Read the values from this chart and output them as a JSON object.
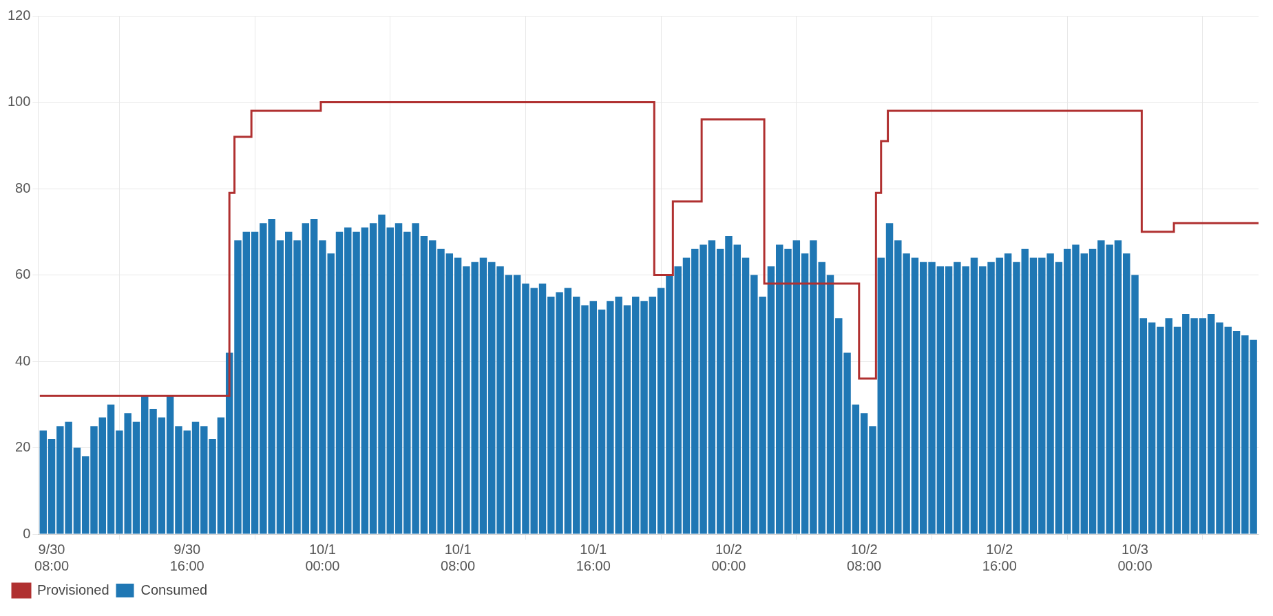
{
  "chart_data": {
    "type": "bar",
    "xlim": [
      "--09-30T07:12",
      "--10-03T07:18"
    ],
    "ylim": [
      0,
      120
    ],
    "yticks": [
      0,
      20,
      40,
      60,
      80,
      100,
      120
    ],
    "xticks": [
      {
        "value": "--09-30T08:00",
        "label": "9/30\n08:00"
      },
      {
        "value": "--09-30T16:00",
        "label": "9/30\n16:00"
      },
      {
        "value": "--10-01T00:00",
        "label": "10/1\n00:00"
      },
      {
        "value": "--10-01T08:00",
        "label": "10/1\n08:00"
      },
      {
        "value": "--10-01T16:00",
        "label": "10/1\n16:00"
      },
      {
        "value": "--10-02T00:00",
        "label": "10/2\n00:00"
      },
      {
        "value": "--10-02T08:00",
        "label": "10/2\n08:00"
      },
      {
        "value": "--10-02T16:00",
        "label": "10/2\n16:00"
      },
      {
        "value": "--10-03T00:00",
        "label": "10/3\n00:00"
      }
    ],
    "grid": true,
    "legend": "bottom left",
    "series": [
      {
        "name": "Provisioned",
        "type": "step",
        "color": "#b03030",
        "x": [
          "--09-30T07:18",
          "--09-30T18:30",
          "--09-30T18:48",
          "--09-30T19:48",
          "--09-30T23:54",
          "--10-01T19:36",
          "--10-01T20:42",
          "--10-01T22:24",
          "--10-02T02:06",
          "--10-02T07:42",
          "--10-02T08:42",
          "--10-02T09:00",
          "--10-02T09:24",
          "--10-03T00:24",
          "--10-03T02:18",
          "--10-03T07:18"
        ],
        "values": [
          32,
          79,
          92,
          98,
          100,
          60,
          77,
          96,
          58,
          36,
          79,
          91,
          98,
          70,
          72,
          72
        ]
      },
      {
        "name": "Consumed",
        "color": "#1f77b4",
        "x": [
          "--09-30T07:30",
          "--09-30T08:00",
          "--09-30T08:30",
          "--09-30T09:00",
          "--09-30T09:30",
          "--09-30T10:00",
          "--09-30T10:30",
          "--09-30T11:00",
          "--09-30T11:30",
          "--09-30T12:00",
          "--09-30T12:30",
          "--09-30T13:00",
          "--09-30T13:30",
          "--09-30T14:00",
          "--09-30T14:30",
          "--09-30T15:00",
          "--09-30T15:30",
          "--09-30T16:00",
          "--09-30T16:30",
          "--09-30T17:00",
          "--09-30T17:30",
          "--09-30T18:00",
          "--09-30T18:30",
          "--09-30T19:00",
          "--09-30T19:30",
          "--09-30T20:00",
          "--09-30T20:30",
          "--09-30T21:00",
          "--09-30T21:30",
          "--09-30T22:00",
          "--09-30T22:30",
          "--09-30T23:00",
          "--09-30T23:30",
          "--10-01T00:00",
          "--10-01T00:30",
          "--10-01T01:00",
          "--10-01T01:30",
          "--10-01T02:00",
          "--10-01T02:30",
          "--10-01T03:00",
          "--10-01T03:30",
          "--10-01T04:00",
          "--10-01T04:30",
          "--10-01T05:00",
          "--10-01T05:30",
          "--10-01T06:00",
          "--10-01T06:30",
          "--10-01T07:00",
          "--10-01T07:30",
          "--10-01T08:00",
          "--10-01T08:30",
          "--10-01T09:00",
          "--10-01T09:30",
          "--10-01T10:00",
          "--10-01T10:30",
          "--10-01T11:00",
          "--10-01T11:30",
          "--10-01T12:00",
          "--10-01T12:30",
          "--10-01T13:00",
          "--10-01T13:30",
          "--10-01T14:00",
          "--10-01T14:30",
          "--10-01T15:00",
          "--10-01T15:30",
          "--10-01T16:00",
          "--10-01T16:30",
          "--10-01T17:00",
          "--10-01T17:30",
          "--10-01T18:00",
          "--10-01T18:30",
          "--10-01T19:00",
          "--10-01T19:30",
          "--10-01T20:00",
          "--10-01T20:30",
          "--10-01T21:00",
          "--10-01T21:30",
          "--10-01T22:00",
          "--10-01T22:30",
          "--10-01T23:00",
          "--10-01T23:30",
          "--10-02T00:00",
          "--10-02T00:30",
          "--10-02T01:00",
          "--10-02T01:30",
          "--10-02T02:00",
          "--10-02T02:30",
          "--10-02T03:00",
          "--10-02T03:30",
          "--10-02T04:00",
          "--10-02T04:30",
          "--10-02T05:00",
          "--10-02T05:30",
          "--10-02T06:00",
          "--10-02T06:30",
          "--10-02T07:00",
          "--10-02T07:30",
          "--10-02T08:00",
          "--10-02T08:30",
          "--10-02T09:00",
          "--10-02T09:30",
          "--10-02T10:00",
          "--10-02T10:30",
          "--10-02T11:00",
          "--10-02T11:30",
          "--10-02T12:00",
          "--10-02T12:30",
          "--10-02T13:00",
          "--10-02T13:30",
          "--10-02T14:00",
          "--10-02T14:30",
          "--10-02T15:00",
          "--10-02T15:30",
          "--10-02T16:00",
          "--10-02T16:30",
          "--10-02T17:00",
          "--10-02T17:30",
          "--10-02T18:00",
          "--10-02T18:30",
          "--10-02T19:00",
          "--10-02T19:30",
          "--10-02T20:00",
          "--10-02T20:30",
          "--10-02T21:00",
          "--10-02T21:30",
          "--10-02T22:00",
          "--10-02T22:30",
          "--10-02T23:00",
          "--10-02T23:30",
          "--10-03T00:00",
          "--10-03T00:30",
          "--10-03T01:00",
          "--10-03T01:30",
          "--10-03T02:00",
          "--10-03T02:30",
          "--10-03T03:00",
          "--10-03T03:30",
          "--10-03T04:00",
          "--10-03T04:30",
          "--10-03T05:00",
          "--10-03T05:30",
          "--10-03T06:00",
          "--10-03T06:30",
          "--10-03T07:00"
        ],
        "values": [
          24,
          22,
          25,
          26,
          20,
          18,
          25,
          27,
          30,
          24,
          28,
          26,
          32,
          29,
          27,
          32,
          25,
          24,
          26,
          25,
          22,
          27,
          42,
          68,
          70,
          70,
          72,
          73,
          68,
          70,
          68,
          72,
          73,
          68,
          65,
          70,
          71,
          70,
          71,
          72,
          74,
          71,
          72,
          70,
          72,
          69,
          68,
          66,
          65,
          64,
          62,
          63,
          64,
          63,
          62,
          60,
          60,
          58,
          57,
          58,
          55,
          56,
          57,
          55,
          53,
          54,
          52,
          54,
          55,
          53,
          55,
          54,
          55,
          57,
          60,
          62,
          64,
          66,
          67,
          68,
          66,
          69,
          67,
          64,
          60,
          55,
          62,
          67,
          66,
          68,
          65,
          68,
          63,
          60,
          50,
          42,
          30,
          28,
          25,
          64,
          72,
          68,
          65,
          64,
          63,
          63,
          62,
          62,
          63,
          62,
          64,
          62,
          63,
          64,
          65,
          63,
          66,
          64,
          64,
          65,
          63,
          66,
          67,
          65,
          66,
          68,
          67,
          68,
          65,
          60,
          50,
          49,
          48,
          50,
          48,
          51,
          50,
          50,
          51,
          49,
          48,
          47,
          46,
          45
        ]
      }
    ]
  }
}
